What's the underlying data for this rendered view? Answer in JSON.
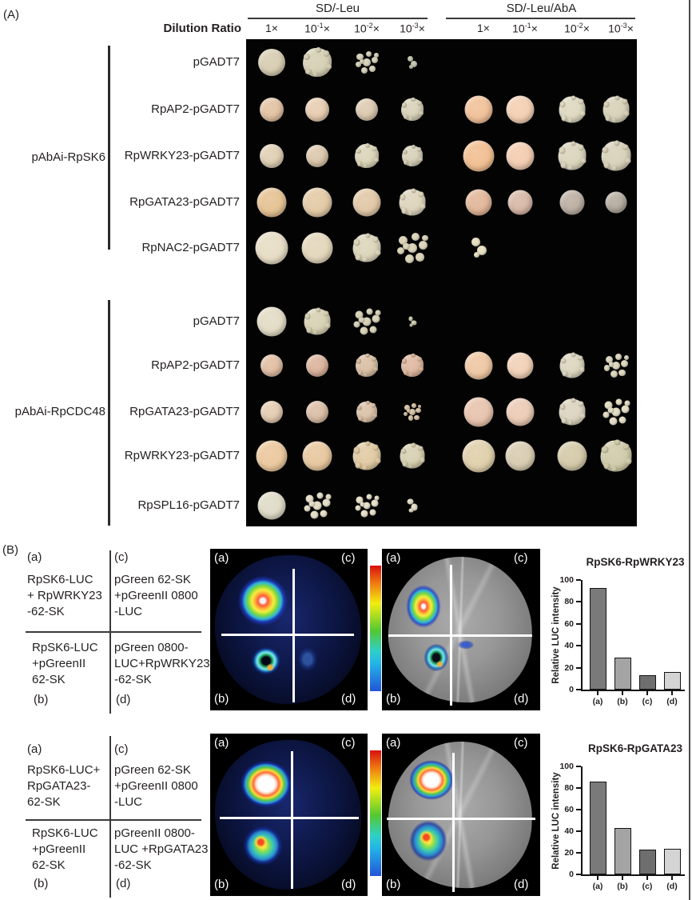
{
  "panel_a": {
    "tag": "(A)",
    "media_groups": [
      {
        "label": "SD/-Leu"
      },
      {
        "label": "SD/-Leu/AbA"
      }
    ],
    "dilution_label": "Dilution Ratio",
    "times_symbol": "×",
    "dilutions": [
      {
        "base": "1",
        "exp": ""
      },
      {
        "base": "10",
        "exp": "-1"
      },
      {
        "base": "10",
        "exp": "-2"
      },
      {
        "base": "10",
        "exp": "-3"
      }
    ],
    "plate_background": "#030303",
    "groups": [
      {
        "bait": "pAbAi-RpSK6",
        "rows": [
          {
            "label": "pGADT7",
            "cells": [
              {
                "t": "round",
                "s": 34,
                "c": "#d8cdb2"
              },
              {
                "t": "colony",
                "s": 36,
                "c": "#d5cfb4"
              },
              {
                "t": "scatter",
                "s": 28,
                "c": "#d8d3bc"
              },
              {
                "t": "tiny",
                "s": 16,
                "c": "#c6cab2"
              },
              {
                "t": "none"
              },
              {
                "t": "none"
              },
              {
                "t": "none"
              },
              {
                "t": "none"
              }
            ]
          },
          {
            "label": "RpAP2-pGADT7",
            "cells": [
              {
                "t": "round",
                "s": 30,
                "c": "#e2c2a2"
              },
              {
                "t": "round",
                "s": 30,
                "c": "#e7ccb0"
              },
              {
                "t": "round",
                "s": 28,
                "c": "#dccab0"
              },
              {
                "t": "colony",
                "s": 28,
                "c": "#d8d1b8"
              },
              {
                "t": "round",
                "s": 35,
                "c": "#f1c199"
              },
              {
                "t": "round",
                "s": 35,
                "c": "#f3cfb3"
              },
              {
                "t": "colony",
                "s": 33,
                "c": "#ded8c0"
              },
              {
                "t": "colony",
                "s": 33,
                "c": "#d7d1b8"
              }
            ]
          },
          {
            "label": "RpWRKY23-pGADT7",
            "cells": [
              {
                "t": "round",
                "s": 30,
                "c": "#dfcfb3"
              },
              {
                "t": "round",
                "s": 28,
                "c": "#dbc8ab"
              },
              {
                "t": "colony",
                "s": 30,
                "c": "#dbd4b8"
              },
              {
                "t": "colony",
                "s": 26,
                "c": "#d7d1b7"
              },
              {
                "t": "round",
                "s": 39,
                "c": "#f1bf92"
              },
              {
                "t": "round",
                "s": 35,
                "c": "#f3ccb1"
              },
              {
                "t": "colony",
                "s": 35,
                "c": "#dbd4bc"
              },
              {
                "t": "colony",
                "s": 37,
                "c": "#d7d1b9"
              }
            ]
          },
          {
            "label": "RpGATA23-pGADT7",
            "cells": [
              {
                "t": "round",
                "s": 37,
                "c": "#e5c293"
              },
              {
                "t": "round",
                "s": 37,
                "c": "#e3caa5"
              },
              {
                "t": "round",
                "s": 35,
                "c": "#e1c8a7"
              },
              {
                "t": "colony",
                "s": 33,
                "c": "#ddd4bb"
              },
              {
                "t": "round",
                "s": 33,
                "c": "#e2b699"
              },
              {
                "t": "round",
                "s": 31,
                "c": "#d8b8a7"
              },
              {
                "t": "round",
                "s": 31,
                "c": "#bcafa3"
              },
              {
                "t": "round",
                "s": 27,
                "c": "#b4ab9d"
              }
            ]
          },
          {
            "label": "RpNAC2-pGADT7",
            "cells": [
              {
                "t": "round",
                "s": 41,
                "c": "#e7ddc5"
              },
              {
                "t": "round",
                "s": 39,
                "c": "#e3d7bb"
              },
              {
                "t": "colony",
                "s": 35,
                "c": "#dcd5bb"
              },
              {
                "t": "scatter",
                "s": 38,
                "c": "#dcd5bb"
              },
              {
                "t": "tiny",
                "s": 24,
                "c": "#e7e1c3"
              },
              {
                "t": "none"
              },
              {
                "t": "none"
              },
              {
                "t": "none"
              }
            ]
          }
        ]
      },
      {
        "bait": "pAbAi-RpCDC48",
        "rows": [
          {
            "label": "pGADT7",
            "cells": [
              {
                "t": "round",
                "s": 37,
                "c": "#e3dbc5"
              },
              {
                "t": "colony",
                "s": 33,
                "c": "#d7d1b3"
              },
              {
                "t": "scatter",
                "s": 33,
                "c": "#d8d3b9"
              },
              {
                "t": "tiny",
                "s": 13,
                "c": "#d3cfb5"
              },
              {
                "t": "none"
              },
              {
                "t": "none"
              },
              {
                "t": "none"
              },
              {
                "t": "none"
              }
            ]
          },
          {
            "label": "RpAP2-pGADT7",
            "cells": [
              {
                "t": "round",
                "s": 28,
                "c": "#e1bea3"
              },
              {
                "t": "round",
                "s": 28,
                "c": "#dbb39b"
              },
              {
                "t": "colony",
                "s": 28,
                "c": "#d9bea3"
              },
              {
                "t": "colony",
                "s": 28,
                "c": "#dfb89f"
              },
              {
                "t": "round",
                "s": 35,
                "c": "#efc7a3"
              },
              {
                "t": "round",
                "s": 33,
                "c": "#f1d1b7"
              },
              {
                "t": "colony",
                "s": 31,
                "c": "#dcd6be"
              },
              {
                "t": "scatter",
                "s": 30,
                "c": "#ded8c0"
              }
            ]
          },
          {
            "label": "RpGATA23-pGADT7",
            "cells": [
              {
                "t": "round",
                "s": 28,
                "c": "#e5ccb1"
              },
              {
                "t": "round",
                "s": 28,
                "c": "#dbbea5"
              },
              {
                "t": "colony",
                "s": 26,
                "c": "#dbc1a7"
              },
              {
                "t": "scatter",
                "s": 22,
                "c": "#dbc8ab"
              },
              {
                "t": "round",
                "s": 37,
                "c": "#e7c3ad"
              },
              {
                "t": "round",
                "s": 35,
                "c": "#ebcbb5"
              },
              {
                "t": "colony",
                "s": 33,
                "c": "#dcd4bf"
              },
              {
                "t": "scatter",
                "s": 33,
                "c": "#e3dec5"
              }
            ]
          },
          {
            "label": "RpWRKY23-pGADT7",
            "cells": [
              {
                "t": "round",
                "s": 39,
                "c": "#ebc89d"
              },
              {
                "t": "round",
                "s": 37,
                "c": "#e7c79f"
              },
              {
                "t": "colony",
                "s": 35,
                "c": "#e1caa3"
              },
              {
                "t": "colony",
                "s": 31,
                "c": "#d7cfb1"
              },
              {
                "t": "round",
                "s": 41,
                "c": "#dfcfab"
              },
              {
                "t": "round",
                "s": 37,
                "c": "#d8ccb1"
              },
              {
                "t": "round",
                "s": 37,
                "c": "#d4caa9"
              },
              {
                "t": "colony",
                "s": 39,
                "c": "#cfcba9"
              }
            ]
          },
          {
            "label": "RpSPL16-pGADT7",
            "cells": [
              {
                "t": "round",
                "s": 35,
                "c": "#dfdbc7"
              },
              {
                "t": "scatter",
                "s": 33,
                "c": "#e5dfc9"
              },
              {
                "t": "scatter",
                "s": 29,
                "c": "#e7e1cb"
              },
              {
                "t": "tiny",
                "s": 17,
                "c": "#e5dfc9"
              },
              {
                "t": "none"
              },
              {
                "t": "none"
              },
              {
                "t": "none"
              },
              {
                "t": "none"
              }
            ]
          }
        ]
      }
    ]
  },
  "panel_b": {
    "tag": "(B)",
    "blocks": [
      {
        "quadrants": {
          "tl_tag": "(a)",
          "tl_lines": [
            "RpSK6-LUC",
            "+ RpWRKY23",
            "-62-SK"
          ],
          "tr_tag": "(c)",
          "tr_lines": [
            "pGreen 62-SK",
            "+pGreenII 0800",
            "-LUC"
          ],
          "bl_tag": "(b)",
          "bl_lines": [
            "RpSK6-LUC",
            "+pGreenII",
            "62-SK"
          ],
          "br_tag": "(d)",
          "br_lines": [
            "pGreen 0800-",
            "LUC+RpWRKY23",
            "-62-SK"
          ]
        },
        "leaf_tags": {
          "tl": "(a)",
          "tr": "(c)",
          "bl": "(b)",
          "br": "(d)"
        }
      },
      {
        "quadrants": {
          "tl_tag": "(a)",
          "tl_lines": [
            "RpSK6-LUC+",
            "RpGATA23-",
            "62-SK"
          ],
          "tr_tag": "(c)",
          "tr_lines": [
            "pGreen 62-SK",
            "+pGreenII 0800",
            "-LUC"
          ],
          "bl_tag": "(b)",
          "bl_lines": [
            "RpSK6-LUC",
            "+pGreenII",
            "62-SK"
          ],
          "br_tag": "(d)",
          "br_lines": [
            "pGreenII 0800-",
            "LUC +RpGATA23",
            "-62-SK"
          ]
        },
        "leaf_tags": {
          "tl": "(a)",
          "tr": "(c)",
          "bl": "(b)",
          "br": "(d)"
        }
      }
    ]
  },
  "chart_data": [
    {
      "type": "bar",
      "title": "RpSK6-RpWRKY23",
      "categories": [
        "(a)",
        "(b)",
        "(c)",
        "(d)"
      ],
      "values": [
        93,
        29,
        13,
        16
      ],
      "xlabel": "",
      "ylabel": "Relative LUC intensity",
      "ylim": [
        0,
        100
      ],
      "yticks": [
        0,
        20,
        40,
        60,
        80,
        100
      ],
      "grid": false,
      "bar_colors": [
        "#7a7a7a",
        "#a4a4a4",
        "#6e6e6e",
        "#d4d4d4"
      ]
    },
    {
      "type": "bar",
      "title": "RpSK6-RpGATA23",
      "categories": [
        "(a)",
        "(b)",
        "(c)",
        "(d)"
      ],
      "values": [
        86,
        43,
        23,
        24
      ],
      "xlabel": "",
      "ylabel": "Relative LUC intensity",
      "ylim": [
        0,
        100
      ],
      "yticks": [
        0,
        20,
        40,
        60,
        80,
        100
      ],
      "grid": false,
      "bar_colors": [
        "#7a7a7a",
        "#a4a4a4",
        "#6e6e6e",
        "#d4d4d4"
      ]
    }
  ]
}
